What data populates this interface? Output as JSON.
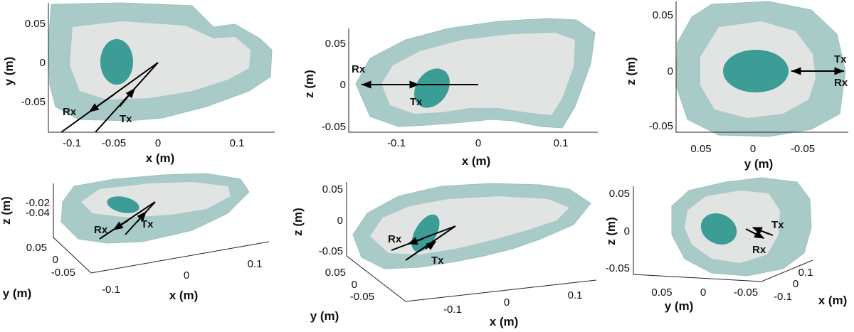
{
  "panels": [
    {
      "id": "p1",
      "view": "top",
      "xlabel": "x (m)",
      "ylabel": "y (m)",
      "xticks": [
        "-0.1",
        "-0.05",
        "0",
        "0.1"
      ],
      "yticks": [
        "0.05",
        "0",
        "-0.05"
      ],
      "rx_label": "Rx",
      "tx_label": "Tx"
    },
    {
      "id": "p2",
      "view": "side",
      "xlabel": "x (m)",
      "ylabel": "z (m)",
      "xticks": [
        "-0.1",
        "0",
        "0.1"
      ],
      "yticks": [
        "0.05",
        "0",
        "-0.05"
      ],
      "rx_label": "Rx",
      "tx_label": "Tx"
    },
    {
      "id": "p3",
      "view": "end",
      "xlabel": "y (m)",
      "ylabel": "z (m)",
      "xticks": [
        "0.05",
        "0",
        "-0.05"
      ],
      "yticks": [
        "0.05",
        "0",
        "-0.05"
      ],
      "rx_label": "Rx",
      "tx_label": "Tx"
    },
    {
      "id": "p4",
      "view": "3d",
      "xlabel": "x (m)",
      "ylabel": "y (m)",
      "zlabel": "z (m)",
      "xticks": [
        "-0.1",
        "0",
        "0.1"
      ],
      "yticks": [
        "0.05",
        "0",
        "-0.05"
      ],
      "zticks": [
        "-0.02",
        "-0.04"
      ],
      "rx_label": "Rx",
      "tx_label": "Tx"
    },
    {
      "id": "p5",
      "view": "3d",
      "xlabel": "x (m)",
      "ylabel": "y (m)",
      "zlabel": "z (m)",
      "xticks": [
        "-0.1",
        "0",
        "0.1"
      ],
      "yticks": [
        "0.05",
        "0",
        "-0.05"
      ],
      "zticks": [
        "0.05",
        "0",
        "-0.05"
      ],
      "rx_label": "Rx",
      "tx_label": "Tx"
    },
    {
      "id": "p6",
      "view": "3d",
      "xlabel": "x (m)",
      "ylabel": "y (m)",
      "zlabel": "z (m)",
      "xticks": [
        "0.1",
        "0",
        "-0.1"
      ],
      "yticks": [
        "0.05",
        "0",
        "-0.05"
      ],
      "zticks": [
        "0.05",
        "0",
        "-0.05"
      ],
      "rx_label": "Rx",
      "tx_label": "Tx"
    }
  ],
  "colors": {
    "outer_layer": "#a9cbc8",
    "inner_region": "#e2e4e4",
    "tumor": "#3c9c96",
    "rays": "#000000"
  }
}
